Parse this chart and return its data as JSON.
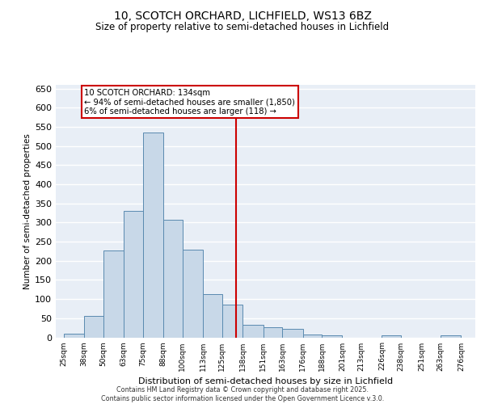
{
  "title1": "10, SCOTCH ORCHARD, LICHFIELD, WS13 6BZ",
  "title2": "Size of property relative to semi-detached houses in Lichfield",
  "xlabel": "Distribution of semi-detached houses by size in Lichfield",
  "ylabel": "Number of semi-detached properties",
  "annotation_title": "10 SCOTCH ORCHARD: 134sqm",
  "annotation_line1": "← 94% of semi-detached houses are smaller (1,850)",
  "annotation_line2": "6% of semi-detached houses are larger (118) →",
  "bar_left_edges": [
    25,
    38,
    50,
    63,
    75,
    88,
    100,
    113,
    125,
    138,
    151,
    163,
    176,
    188,
    201,
    213,
    226,
    238,
    251,
    263
  ],
  "bar_widths": [
    13,
    12,
    13,
    12,
    13,
    12,
    13,
    12,
    13,
    13,
    12,
    13,
    12,
    13,
    12,
    13,
    12,
    13,
    12,
    13
  ],
  "bar_heights": [
    10,
    57,
    228,
    330,
    535,
    308,
    230,
    113,
    85,
    32,
    27,
    22,
    7,
    5,
    0,
    0,
    5,
    0,
    0,
    5
  ],
  "bar_color": "#c8d8e8",
  "bar_edge_color": "#5a8ab0",
  "vline_x": 134,
  "vline_color": "#cc0000",
  "annotation_box_color": "#cc0000",
  "background_color": "#e8eef6",
  "grid_color": "#ffffff",
  "ylim": [
    0,
    660
  ],
  "yticks": [
    0,
    50,
    100,
    150,
    200,
    250,
    300,
    350,
    400,
    450,
    500,
    550,
    600,
    650
  ],
  "xtick_labels": [
    "25sqm",
    "38sqm",
    "50sqm",
    "63sqm",
    "75sqm",
    "88sqm",
    "100sqm",
    "113sqm",
    "125sqm",
    "138sqm",
    "151sqm",
    "163sqm",
    "176sqm",
    "188sqm",
    "201sqm",
    "213sqm",
    "226sqm",
    "238sqm",
    "251sqm",
    "263sqm",
    "276sqm"
  ],
  "xtick_positions": [
    25,
    38,
    50,
    63,
    75,
    88,
    100,
    113,
    125,
    138,
    151,
    163,
    176,
    188,
    201,
    213,
    226,
    238,
    251,
    263,
    276
  ],
  "footer1": "Contains HM Land Registry data © Crown copyright and database right 2025.",
  "footer2": "Contains public sector information licensed under the Open Government Licence v.3.0."
}
